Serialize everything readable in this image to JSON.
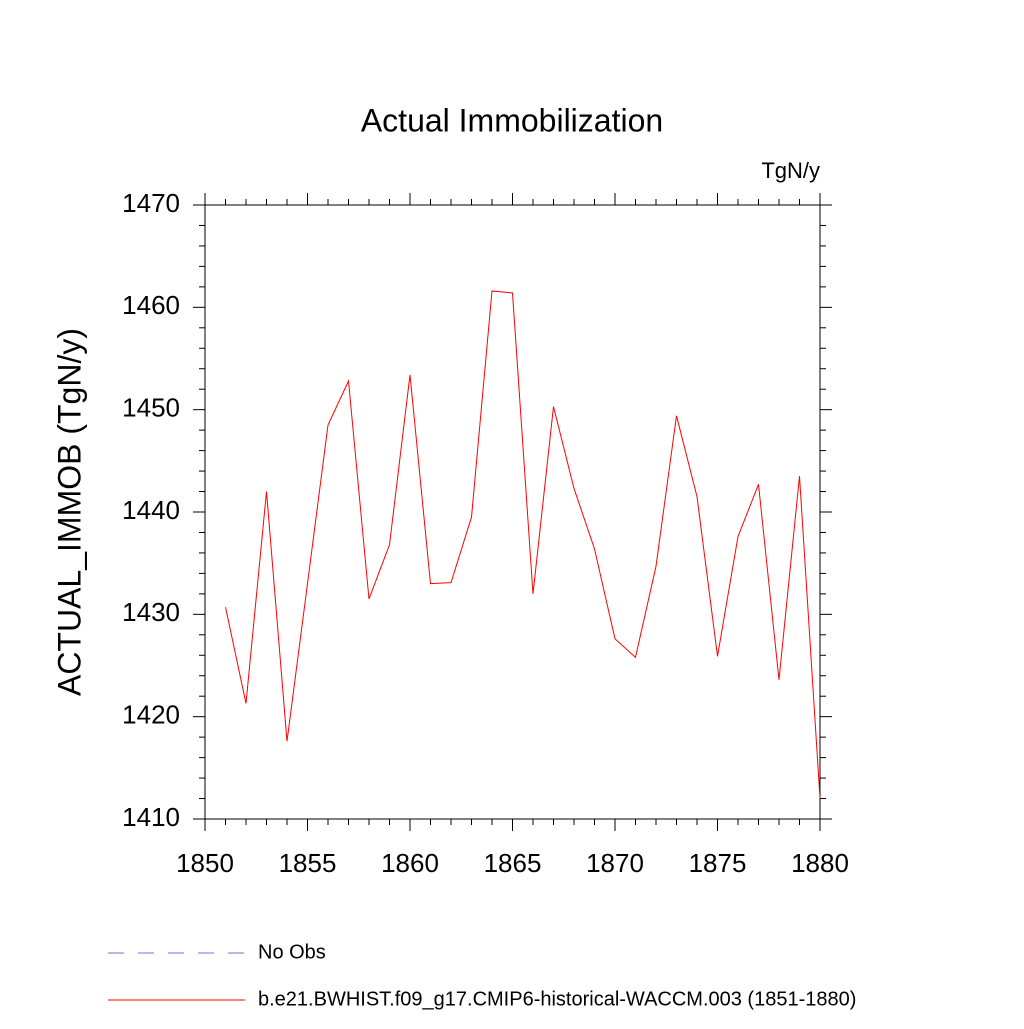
{
  "chart_data": {
    "type": "line",
    "title": "Actual Immobilization",
    "units": "TgN/y",
    "y_label": "ACTUAL_IMMOB  (TgN/y)",
    "x": [
      1851,
      1852,
      1853,
      1854,
      1855,
      1856,
      1857,
      1858,
      1859,
      1860,
      1861,
      1862,
      1863,
      1864,
      1865,
      1866,
      1867,
      1868,
      1869,
      1870,
      1871,
      1872,
      1873,
      1874,
      1875,
      1876,
      1877,
      1878,
      1879,
      1880
    ],
    "series": [
      {
        "name": "b.e21.BWHIST.f09_g17.CMIP6-historical-WACCM.003 (1851-1880)",
        "color": "#ff0000",
        "values": [
          1430.7,
          1421.3,
          1442.0,
          1417.6,
          1433.0,
          1448.5,
          1452.8,
          1431.5,
          1436.8,
          1453.4,
          1433.0,
          1433.1,
          1439.5,
          1461.6,
          1461.4,
          1432.0,
          1450.3,
          1442.3,
          1436.4,
          1427.6,
          1425.8,
          1434.7,
          1449.4,
          1441.5,
          1425.9,
          1437.6,
          1442.7,
          1423.6,
          1443.5,
          1412.0
        ]
      }
    ],
    "reference": {
      "name": "No Obs",
      "color": "#7b6fd6",
      "line_style": "dashed"
    },
    "xlim": [
      1850,
      1880
    ],
    "xticks": [
      1850,
      1855,
      1860,
      1865,
      1870,
      1875,
      1880
    ],
    "ylim": [
      1410,
      1470
    ],
    "yticks": [
      1410,
      1420,
      1430,
      1440,
      1450,
      1460,
      1470
    ],
    "minor_per_major": 5,
    "grid": false
  }
}
